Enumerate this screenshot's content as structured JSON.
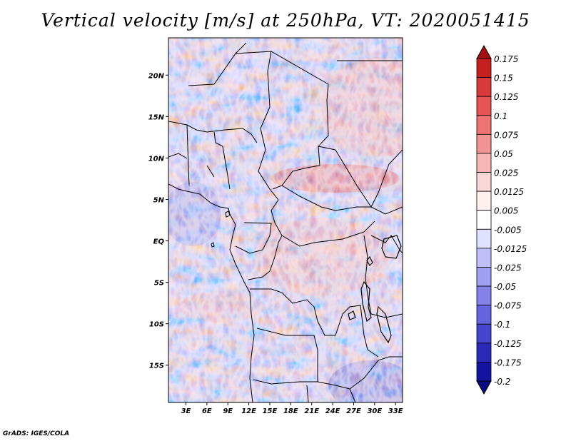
{
  "title": "Vertical velocity [m/s] at 250hPa, VT: 2020051415",
  "footer": "GrADS: IGES/COLA",
  "map": {
    "lat_labels": [
      "20N",
      "15N",
      "10N",
      "5N",
      "EQ",
      "5S",
      "10S",
      "15S"
    ],
    "lon_labels": [
      "3E",
      "6E",
      "9E",
      "12E",
      "15E",
      "18E",
      "21E",
      "24E",
      "27E",
      "30E",
      "33E"
    ],
    "lat_range": [
      -19.5,
      24.5
    ],
    "lon_range": [
      0.5,
      34
    ],
    "lat_ticks": [
      20,
      15,
      10,
      5,
      0,
      -5,
      -10,
      -15
    ],
    "lon_ticks": [
      3,
      6,
      9,
      12,
      15,
      18,
      21,
      24,
      27,
      30,
      33
    ]
  },
  "colorbar": {
    "labels": [
      "0.175",
      "0.15",
      "0.125",
      "0.1",
      "0.075",
      "0.05",
      "0.025",
      "0.0125",
      "0.005",
      "-0.005",
      "-0.0125",
      "-0.025",
      "-0.05",
      "-0.075",
      "-0.1",
      "-0.125",
      "-0.175",
      "-0.2"
    ],
    "colors": [
      "#a01010",
      "#c42020",
      "#d83a3a",
      "#e65454",
      "#ee7373",
      "#f39494",
      "#f7b6b6",
      "#fbd6d6",
      "#fff0f0",
      "#ffffff",
      "#e0e0ff",
      "#c0c0f8",
      "#a0a0f0",
      "#8282e8",
      "#6464dc",
      "#4646cc",
      "#2a2ab8",
      "#1414a0",
      "#0a0a80"
    ]
  }
}
